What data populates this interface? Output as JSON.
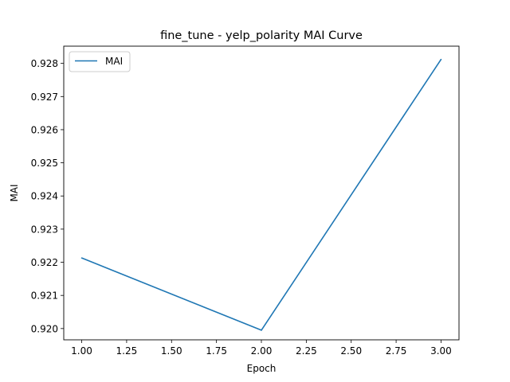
{
  "chart_data": {
    "type": "line",
    "title": "fine_tune - yelp_polarity MAI Curve",
    "xlabel": "Epoch",
    "ylabel": "MAI",
    "x": [
      1.0,
      2.0,
      3.0
    ],
    "series": [
      {
        "name": "MAI",
        "values": [
          0.92213,
          0.91995,
          0.92812
        ],
        "color": "#1f77b4"
      }
    ],
    "xlim": [
      0.9,
      3.1
    ],
    "ylim": [
      0.91966,
      0.92852
    ],
    "xticks": [
      1.0,
      1.25,
      1.5,
      1.75,
      2.0,
      2.25,
      2.5,
      2.75,
      3.0
    ],
    "xtick_labels": [
      "1.00",
      "1.25",
      "1.50",
      "1.75",
      "2.00",
      "2.25",
      "2.50",
      "2.75",
      "3.00"
    ],
    "yticks": [
      0.92,
      0.921,
      0.922,
      0.923,
      0.924,
      0.925,
      0.926,
      0.927,
      0.928
    ],
    "ytick_labels": [
      "0.920",
      "0.921",
      "0.922",
      "0.923",
      "0.924",
      "0.925",
      "0.926",
      "0.927",
      "0.928"
    ],
    "grid": false,
    "legend_position": "top-left"
  }
}
